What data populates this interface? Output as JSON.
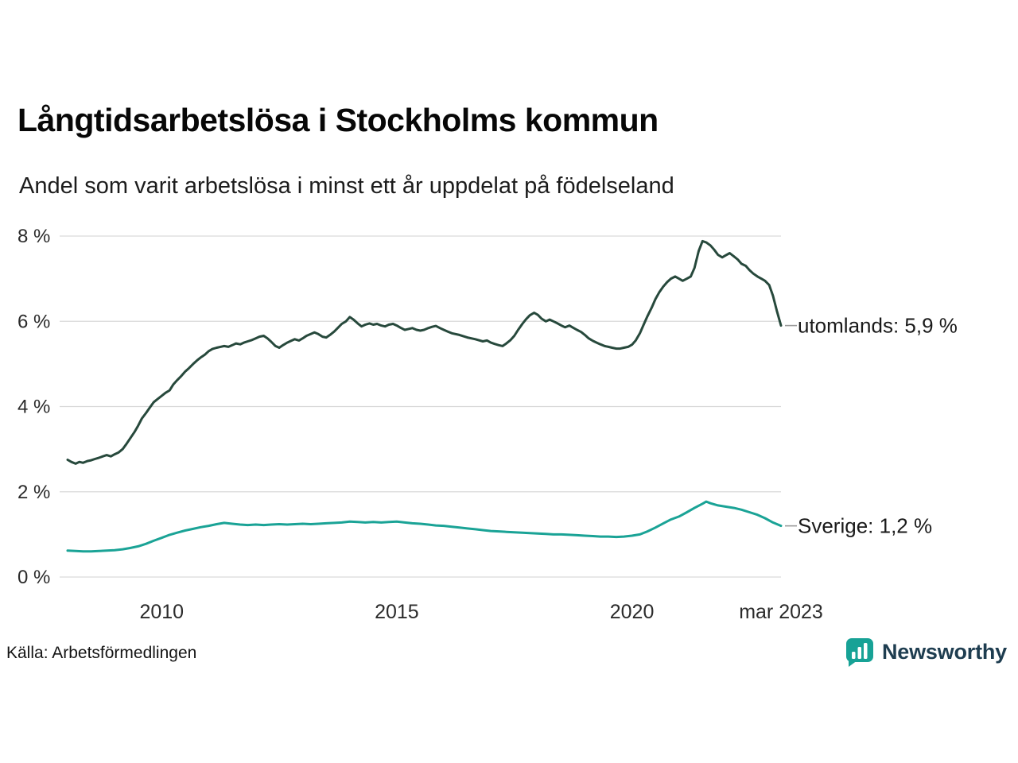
{
  "title": "Långtidsarbetslösa i Stockholms kommun",
  "subtitle": "Andel som varit arbetslösa i minst ett år uppdelat på födelseland",
  "source": "Källa: Arbetsförmedlingen",
  "brand": {
    "name": "Newsworthy",
    "icon_color": "#17a296",
    "text_color": "#1e3d50"
  },
  "colors": {
    "grid": "#d9d9d9",
    "leader": "#9a9a9a",
    "tick_text": "#2b2b2b"
  },
  "chart_data": {
    "type": "line",
    "x_start": 2008.0,
    "x_end": 2023.17,
    "ylim": [
      0,
      8
    ],
    "grid": true,
    "legend_position": "right-end-labels",
    "yticks": [
      {
        "value": 0,
        "label": "0 %"
      },
      {
        "value": 2,
        "label": "2 %"
      },
      {
        "value": 4,
        "label": "4 %"
      },
      {
        "value": 6,
        "label": "6 %"
      },
      {
        "value": 8,
        "label": "8 %"
      }
    ],
    "xticks": [
      {
        "value": 2010,
        "label": "2010"
      },
      {
        "value": 2015,
        "label": "2015"
      },
      {
        "value": 2020,
        "label": "2020"
      },
      {
        "value": 2023.17,
        "label": "mar 2023"
      }
    ],
    "series": [
      {
        "name": "utomlands",
        "label": "utomlands: 5,9 %",
        "end_value": 5.9,
        "color": "#27493c",
        "points": [
          [
            2008.0,
            2.75
          ],
          [
            2008.08,
            2.7
          ],
          [
            2008.17,
            2.66
          ],
          [
            2008.25,
            2.7
          ],
          [
            2008.33,
            2.68
          ],
          [
            2008.42,
            2.72
          ],
          [
            2008.5,
            2.74
          ],
          [
            2008.58,
            2.77
          ],
          [
            2008.67,
            2.8
          ],
          [
            2008.75,
            2.83
          ],
          [
            2008.83,
            2.86
          ],
          [
            2008.92,
            2.83
          ],
          [
            2009.0,
            2.88
          ],
          [
            2009.08,
            2.92
          ],
          [
            2009.17,
            3.0
          ],
          [
            2009.25,
            3.12
          ],
          [
            2009.33,
            3.25
          ],
          [
            2009.42,
            3.4
          ],
          [
            2009.5,
            3.55
          ],
          [
            2009.58,
            3.72
          ],
          [
            2009.67,
            3.85
          ],
          [
            2009.75,
            3.98
          ],
          [
            2009.83,
            4.1
          ],
          [
            2009.92,
            4.18
          ],
          [
            2010.0,
            4.25
          ],
          [
            2010.08,
            4.32
          ],
          [
            2010.17,
            4.38
          ],
          [
            2010.25,
            4.52
          ],
          [
            2010.33,
            4.62
          ],
          [
            2010.42,
            4.72
          ],
          [
            2010.5,
            4.82
          ],
          [
            2010.58,
            4.9
          ],
          [
            2010.67,
            5.0
          ],
          [
            2010.75,
            5.08
          ],
          [
            2010.83,
            5.15
          ],
          [
            2010.92,
            5.22
          ],
          [
            2011.0,
            5.3
          ],
          [
            2011.08,
            5.35
          ],
          [
            2011.17,
            5.38
          ],
          [
            2011.25,
            5.4
          ],
          [
            2011.33,
            5.42
          ],
          [
            2011.42,
            5.4
          ],
          [
            2011.5,
            5.44
          ],
          [
            2011.58,
            5.48
          ],
          [
            2011.67,
            5.46
          ],
          [
            2011.75,
            5.5
          ],
          [
            2011.83,
            5.53
          ],
          [
            2011.92,
            5.56
          ],
          [
            2012.0,
            5.6
          ],
          [
            2012.08,
            5.64
          ],
          [
            2012.17,
            5.66
          ],
          [
            2012.25,
            5.6
          ],
          [
            2012.33,
            5.52
          ],
          [
            2012.42,
            5.42
          ],
          [
            2012.5,
            5.38
          ],
          [
            2012.58,
            5.44
          ],
          [
            2012.67,
            5.5
          ],
          [
            2012.75,
            5.54
          ],
          [
            2012.83,
            5.58
          ],
          [
            2012.92,
            5.55
          ],
          [
            2013.0,
            5.6
          ],
          [
            2013.08,
            5.66
          ],
          [
            2013.17,
            5.7
          ],
          [
            2013.25,
            5.74
          ],
          [
            2013.33,
            5.7
          ],
          [
            2013.42,
            5.64
          ],
          [
            2013.5,
            5.62
          ],
          [
            2013.58,
            5.68
          ],
          [
            2013.67,
            5.76
          ],
          [
            2013.75,
            5.85
          ],
          [
            2013.83,
            5.94
          ],
          [
            2013.92,
            6.0
          ],
          [
            2014.0,
            6.1
          ],
          [
            2014.08,
            6.04
          ],
          [
            2014.17,
            5.95
          ],
          [
            2014.25,
            5.88
          ],
          [
            2014.33,
            5.92
          ],
          [
            2014.42,
            5.95
          ],
          [
            2014.5,
            5.92
          ],
          [
            2014.58,
            5.94
          ],
          [
            2014.67,
            5.9
          ],
          [
            2014.75,
            5.88
          ],
          [
            2014.83,
            5.92
          ],
          [
            2014.92,
            5.94
          ],
          [
            2015.0,
            5.9
          ],
          [
            2015.08,
            5.85
          ],
          [
            2015.17,
            5.8
          ],
          [
            2015.25,
            5.82
          ],
          [
            2015.33,
            5.84
          ],
          [
            2015.42,
            5.8
          ],
          [
            2015.5,
            5.78
          ],
          [
            2015.58,
            5.8
          ],
          [
            2015.67,
            5.84
          ],
          [
            2015.75,
            5.87
          ],
          [
            2015.83,
            5.89
          ],
          [
            2015.92,
            5.84
          ],
          [
            2016.0,
            5.8
          ],
          [
            2016.08,
            5.76
          ],
          [
            2016.17,
            5.72
          ],
          [
            2016.33,
            5.68
          ],
          [
            2016.5,
            5.62
          ],
          [
            2016.67,
            5.58
          ],
          [
            2016.83,
            5.53
          ],
          [
            2016.92,
            5.55
          ],
          [
            2017.0,
            5.5
          ],
          [
            2017.08,
            5.47
          ],
          [
            2017.17,
            5.44
          ],
          [
            2017.25,
            5.42
          ],
          [
            2017.33,
            5.48
          ],
          [
            2017.42,
            5.56
          ],
          [
            2017.5,
            5.66
          ],
          [
            2017.58,
            5.8
          ],
          [
            2017.67,
            5.94
          ],
          [
            2017.75,
            6.05
          ],
          [
            2017.83,
            6.14
          ],
          [
            2017.92,
            6.2
          ],
          [
            2018.0,
            6.15
          ],
          [
            2018.08,
            6.06
          ],
          [
            2018.17,
            6.0
          ],
          [
            2018.25,
            6.04
          ],
          [
            2018.33,
            6.0
          ],
          [
            2018.42,
            5.95
          ],
          [
            2018.5,
            5.9
          ],
          [
            2018.58,
            5.86
          ],
          [
            2018.67,
            5.9
          ],
          [
            2018.75,
            5.85
          ],
          [
            2018.83,
            5.8
          ],
          [
            2018.92,
            5.75
          ],
          [
            2019.0,
            5.68
          ],
          [
            2019.08,
            5.6
          ],
          [
            2019.17,
            5.54
          ],
          [
            2019.25,
            5.5
          ],
          [
            2019.33,
            5.46
          ],
          [
            2019.42,
            5.42
          ],
          [
            2019.5,
            5.4
          ],
          [
            2019.58,
            5.38
          ],
          [
            2019.67,
            5.36
          ],
          [
            2019.75,
            5.36
          ],
          [
            2019.83,
            5.38
          ],
          [
            2019.92,
            5.4
          ],
          [
            2020.0,
            5.45
          ],
          [
            2020.08,
            5.55
          ],
          [
            2020.17,
            5.72
          ],
          [
            2020.25,
            5.92
          ],
          [
            2020.33,
            6.12
          ],
          [
            2020.42,
            6.32
          ],
          [
            2020.5,
            6.52
          ],
          [
            2020.58,
            6.68
          ],
          [
            2020.67,
            6.82
          ],
          [
            2020.75,
            6.92
          ],
          [
            2020.83,
            7.0
          ],
          [
            2020.92,
            7.05
          ],
          [
            2021.0,
            7.0
          ],
          [
            2021.08,
            6.95
          ],
          [
            2021.17,
            7.0
          ],
          [
            2021.25,
            7.05
          ],
          [
            2021.33,
            7.25
          ],
          [
            2021.42,
            7.65
          ],
          [
            2021.5,
            7.88
          ],
          [
            2021.58,
            7.85
          ],
          [
            2021.67,
            7.78
          ],
          [
            2021.75,
            7.68
          ],
          [
            2021.83,
            7.56
          ],
          [
            2021.92,
            7.5
          ],
          [
            2022.0,
            7.55
          ],
          [
            2022.08,
            7.6
          ],
          [
            2022.17,
            7.52
          ],
          [
            2022.25,
            7.45
          ],
          [
            2022.33,
            7.35
          ],
          [
            2022.42,
            7.3
          ],
          [
            2022.5,
            7.2
          ],
          [
            2022.58,
            7.12
          ],
          [
            2022.67,
            7.05
          ],
          [
            2022.75,
            7.0
          ],
          [
            2022.83,
            6.95
          ],
          [
            2022.92,
            6.85
          ],
          [
            2023.0,
            6.6
          ],
          [
            2023.08,
            6.25
          ],
          [
            2023.17,
            5.9
          ]
        ]
      },
      {
        "name": "sverige",
        "label": "Sverige: 1,2 %",
        "end_value": 1.2,
        "color": "#1aa396",
        "points": [
          [
            2008.0,
            0.62
          ],
          [
            2008.17,
            0.61
          ],
          [
            2008.33,
            0.6
          ],
          [
            2008.5,
            0.6
          ],
          [
            2008.67,
            0.61
          ],
          [
            2008.83,
            0.62
          ],
          [
            2009.0,
            0.63
          ],
          [
            2009.17,
            0.65
          ],
          [
            2009.33,
            0.68
          ],
          [
            2009.5,
            0.72
          ],
          [
            2009.67,
            0.78
          ],
          [
            2009.83,
            0.85
          ],
          [
            2010.0,
            0.92
          ],
          [
            2010.17,
            0.99
          ],
          [
            2010.33,
            1.04
          ],
          [
            2010.5,
            1.09
          ],
          [
            2010.67,
            1.13
          ],
          [
            2010.83,
            1.17
          ],
          [
            2011.0,
            1.2
          ],
          [
            2011.17,
            1.24
          ],
          [
            2011.33,
            1.27
          ],
          [
            2011.5,
            1.25
          ],
          [
            2011.67,
            1.23
          ],
          [
            2011.83,
            1.22
          ],
          [
            2012.0,
            1.23
          ],
          [
            2012.17,
            1.22
          ],
          [
            2012.33,
            1.23
          ],
          [
            2012.5,
            1.24
          ],
          [
            2012.67,
            1.23
          ],
          [
            2012.83,
            1.24
          ],
          [
            2013.0,
            1.25
          ],
          [
            2013.17,
            1.24
          ],
          [
            2013.33,
            1.25
          ],
          [
            2013.5,
            1.26
          ],
          [
            2013.67,
            1.27
          ],
          [
            2013.83,
            1.28
          ],
          [
            2014.0,
            1.3
          ],
          [
            2014.17,
            1.29
          ],
          [
            2014.33,
            1.28
          ],
          [
            2014.5,
            1.29
          ],
          [
            2014.67,
            1.28
          ],
          [
            2014.83,
            1.29
          ],
          [
            2015.0,
            1.3
          ],
          [
            2015.17,
            1.28
          ],
          [
            2015.33,
            1.26
          ],
          [
            2015.5,
            1.25
          ],
          [
            2015.67,
            1.23
          ],
          [
            2015.83,
            1.21
          ],
          [
            2016.0,
            1.2
          ],
          [
            2016.17,
            1.18
          ],
          [
            2016.33,
            1.16
          ],
          [
            2016.5,
            1.14
          ],
          [
            2016.67,
            1.12
          ],
          [
            2016.83,
            1.1
          ],
          [
            2017.0,
            1.08
          ],
          [
            2017.17,
            1.07
          ],
          [
            2017.33,
            1.06
          ],
          [
            2017.5,
            1.05
          ],
          [
            2017.67,
            1.04
          ],
          [
            2017.83,
            1.03
          ],
          [
            2018.0,
            1.02
          ],
          [
            2018.17,
            1.01
          ],
          [
            2018.33,
            1.0
          ],
          [
            2018.5,
            1.0
          ],
          [
            2018.67,
            0.99
          ],
          [
            2018.83,
            0.98
          ],
          [
            2019.0,
            0.97
          ],
          [
            2019.17,
            0.96
          ],
          [
            2019.33,
            0.95
          ],
          [
            2019.5,
            0.95
          ],
          [
            2019.67,
            0.94
          ],
          [
            2019.83,
            0.95
          ],
          [
            2020.0,
            0.97
          ],
          [
            2020.17,
            1.0
          ],
          [
            2020.33,
            1.07
          ],
          [
            2020.5,
            1.16
          ],
          [
            2020.67,
            1.26
          ],
          [
            2020.83,
            1.35
          ],
          [
            2021.0,
            1.42
          ],
          [
            2021.17,
            1.52
          ],
          [
            2021.33,
            1.62
          ],
          [
            2021.5,
            1.72
          ],
          [
            2021.58,
            1.77
          ],
          [
            2021.67,
            1.73
          ],
          [
            2021.83,
            1.68
          ],
          [
            2022.0,
            1.65
          ],
          [
            2022.17,
            1.62
          ],
          [
            2022.33,
            1.58
          ],
          [
            2022.5,
            1.52
          ],
          [
            2022.67,
            1.46
          ],
          [
            2022.83,
            1.38
          ],
          [
            2023.0,
            1.28
          ],
          [
            2023.17,
            1.2
          ]
        ]
      }
    ]
  }
}
